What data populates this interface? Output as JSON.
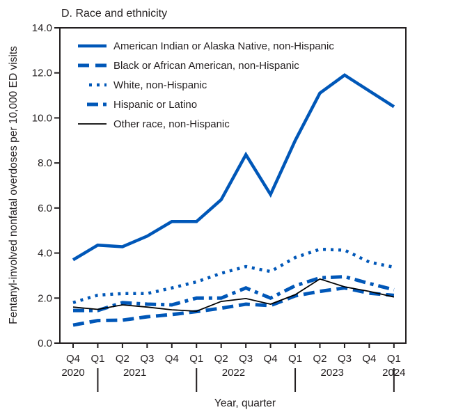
{
  "chart_data": {
    "type": "line",
    "title": "D. Race and ethnicity",
    "xlabel": "Year, quarter",
    "ylabel": "Fentanyl-involved nonfatal overdoses per 10,000 ED visits",
    "ylim": [
      0,
      14
    ],
    "yticks": [
      "0.0",
      "2.0",
      "4.0",
      "6.0",
      "8.0",
      "10.0",
      "12.0",
      "14.0"
    ],
    "grid": false,
    "legend_position": "top-left",
    "x_quarters": [
      "Q4",
      "Q1",
      "Q2",
      "Q3",
      "Q4",
      "Q1",
      "Q2",
      "Q3",
      "Q4",
      "Q1",
      "Q2",
      "Q3",
      "Q4",
      "Q1"
    ],
    "x_years": [
      {
        "label": "2020",
        "at_index": 0
      },
      {
        "label": "2021",
        "at_index": 2.5
      },
      {
        "label": "2022",
        "at_index": 6.5
      },
      {
        "label": "2023",
        "at_index": 10.5
      },
      {
        "label": "2024",
        "at_index": 13
      }
    ],
    "year_separators_at_index": [
      1,
      5,
      9,
      13
    ],
    "series": [
      {
        "name": "American Indian or Alaska Native, non-Hispanic",
        "style": "solid-thick",
        "color": "#0057b8",
        "values": [
          3.7,
          4.35,
          4.28,
          4.75,
          5.4,
          5.4,
          6.37,
          8.37,
          6.6,
          9.0,
          11.1,
          11.9,
          11.2,
          10.5
        ]
      },
      {
        "name": "Black or African American, non-Hispanic",
        "style": "dashed",
        "color": "#0057b8",
        "values": [
          0.8,
          1.0,
          1.02,
          1.17,
          1.27,
          1.4,
          1.55,
          1.73,
          1.67,
          2.1,
          2.3,
          2.45,
          2.22,
          2.12
        ]
      },
      {
        "name": "White, non-Hispanic",
        "style": "dotted",
        "color": "#0057b8",
        "values": [
          1.8,
          2.13,
          2.2,
          2.2,
          2.45,
          2.72,
          3.1,
          3.4,
          3.18,
          3.8,
          4.17,
          4.13,
          3.6,
          3.37
        ]
      },
      {
        "name": "Hispanic or Latino",
        "style": "dash-dot",
        "color": "#0057b8",
        "values": [
          1.45,
          1.45,
          1.8,
          1.73,
          1.7,
          2.0,
          2.0,
          2.45,
          2.0,
          2.55,
          2.9,
          2.95,
          2.65,
          2.37
        ]
      },
      {
        "name": "Other race, non-Hispanic",
        "style": "solid-thin",
        "color": "#000000",
        "values": [
          1.6,
          1.5,
          1.7,
          1.6,
          1.48,
          1.42,
          1.85,
          1.98,
          1.73,
          2.15,
          2.85,
          2.5,
          2.3,
          2.05
        ]
      }
    ]
  }
}
